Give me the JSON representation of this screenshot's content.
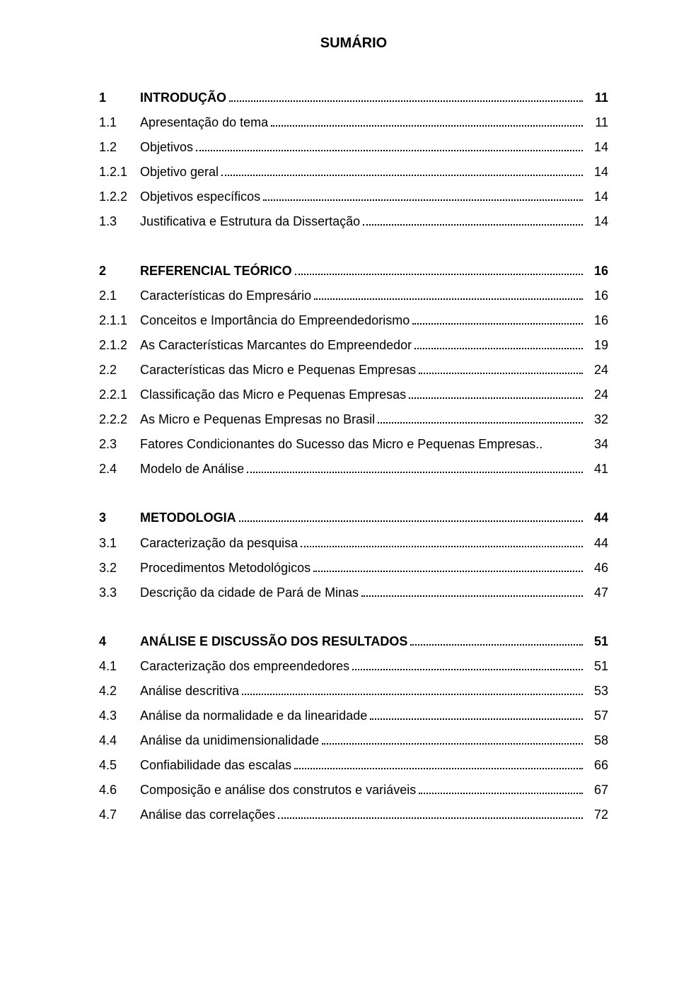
{
  "title": "SUMÁRIO",
  "fontsize_title": 20,
  "fontsize_body": 18,
  "line_height": 1.95,
  "colors": {
    "text": "#000000",
    "background": "#ffffff",
    "leader": "#000000"
  },
  "toc": [
    {
      "num": "1",
      "label": "INTRODUÇÃO",
      "page": "11",
      "bold": true,
      "gap_before": false
    },
    {
      "num": "1.1",
      "label": "Apresentação do tema",
      "page": "11",
      "bold": false,
      "gap_before": false
    },
    {
      "num": "1.2",
      "label": "Objetivos",
      "page": "14",
      "bold": false,
      "gap_before": false
    },
    {
      "num": "1.2.1",
      "label": "Objetivo geral",
      "page": "14",
      "bold": false,
      "gap_before": false
    },
    {
      "num": "1.2.2",
      "label": "Objetivos específicos",
      "page": "14",
      "bold": false,
      "gap_before": false
    },
    {
      "num": "1.3",
      "label": "Justificativa e Estrutura da Dissertação",
      "page": "14",
      "bold": false,
      "gap_before": false
    },
    {
      "num": "2",
      "label": "REFERENCIAL TEÓRICO",
      "page": "16",
      "bold": true,
      "gap_before": true
    },
    {
      "num": "2.1",
      "label": "Características do Empresário",
      "page": "16",
      "bold": false,
      "gap_before": false
    },
    {
      "num": "2.1.1",
      "label": "Conceitos e Importância do Empreendedorismo",
      "page": "16",
      "bold": false,
      "gap_before": false
    },
    {
      "num": "2.1.2",
      "label": "As Características Marcantes do Empreendedor",
      "page": "19",
      "bold": false,
      "gap_before": false
    },
    {
      "num": "2.2",
      "label": "Características das Micro e Pequenas Empresas",
      "page": "24",
      "bold": false,
      "gap_before": false
    },
    {
      "num": "2.2.1",
      "label": "Classificação das Micro e Pequenas Empresas",
      "page": "24",
      "bold": false,
      "gap_before": false
    },
    {
      "num": "2.2.2",
      "label": "As Micro e Pequenas Empresas no Brasil",
      "page": "32",
      "bold": false,
      "gap_before": false
    },
    {
      "num": "2.3",
      "label": "Fatores Condicionantes do Sucesso das Micro e Pequenas Empresas..",
      "page": "34",
      "bold": false,
      "gap_before": false,
      "no_leader": true
    },
    {
      "num": "2.4",
      "label": "Modelo de Análise",
      "page": "41",
      "bold": false,
      "gap_before": false
    },
    {
      "num": "3",
      "label": "METODOLOGIA",
      "page": "44",
      "bold": true,
      "gap_before": true
    },
    {
      "num": "3.1",
      "label": "Caracterização da pesquisa",
      "page": "44",
      "bold": false,
      "gap_before": false
    },
    {
      "num": "3.2",
      "label": "Procedimentos Metodológicos",
      "page": "46",
      "bold": false,
      "gap_before": false
    },
    {
      "num": "3.3",
      "label": "Descrição da cidade de Pará de Minas",
      "page": "47",
      "bold": false,
      "gap_before": false
    },
    {
      "num": "4",
      "label": "ANÁLISE E DISCUSSÃO DOS RESULTADOS",
      "page": "51",
      "bold": true,
      "gap_before": true
    },
    {
      "num": "4.1",
      "label": "Caracterização dos empreendedores",
      "page": "51",
      "bold": false,
      "gap_before": false
    },
    {
      "num": "4.2",
      "label": "Análise descritiva",
      "page": "53",
      "bold": false,
      "gap_before": false
    },
    {
      "num": "4.3",
      "label": "Análise da normalidade e da linearidade",
      "page": "57",
      "bold": false,
      "gap_before": false
    },
    {
      "num": "4.4",
      "label": "Análise da unidimensionalidade",
      "page": "58",
      "bold": false,
      "gap_before": false
    },
    {
      "num": "4.5",
      "label": "Confiabilidade das escalas",
      "page": "66",
      "bold": false,
      "gap_before": false
    },
    {
      "num": "4.6",
      "label": "Composição e análise dos construtos e variáveis",
      "page": "67",
      "bold": false,
      "gap_before": false
    },
    {
      "num": "4.7",
      "label": "Análise das correlações",
      "page": "72",
      "bold": false,
      "gap_before": false
    }
  ]
}
